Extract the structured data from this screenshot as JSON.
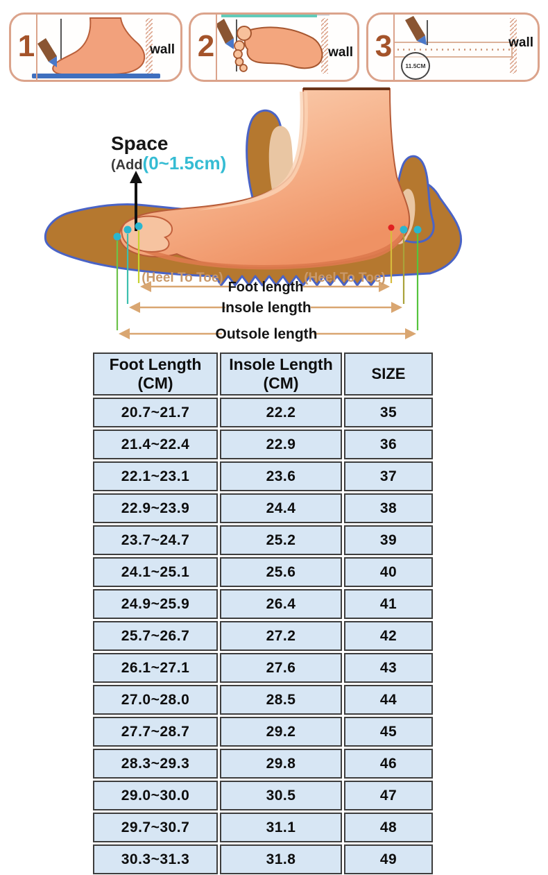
{
  "measuring_steps": {
    "panels": [
      {
        "number": "1",
        "wall_label": "wall"
      },
      {
        "number": "2",
        "wall_label": "wall"
      },
      {
        "number": "3",
        "wall_label": "wall",
        "circle_label": "11.5CM"
      }
    ]
  },
  "foot_diagram": {
    "space_title": "Space",
    "space_prefix": "(Add",
    "space_range": "(0~1.5cm)",
    "heel_to_toe_left": "(Heel To Toe)",
    "heel_to_toe_right": "(Heel To Toe)",
    "foot_length_label": "Foot length",
    "insole_length_label": "Insole length",
    "outsole_length_label": "Outsole length"
  },
  "size_table": {
    "headers": [
      {
        "line1": "Foot Length",
        "line2": "(CM)"
      },
      {
        "line1": "Insole Length",
        "line2": "(CM)"
      },
      {
        "line1": "SIZE",
        "line2": ""
      }
    ],
    "rows": [
      {
        "foot_length": "20.7~21.7",
        "insole_length": "22.2",
        "size": "35"
      },
      {
        "foot_length": "21.4~22.4",
        "insole_length": "22.9",
        "size": "36"
      },
      {
        "foot_length": "22.1~23.1",
        "insole_length": "23.6",
        "size": "37"
      },
      {
        "foot_length": "22.9~23.9",
        "insole_length": "24.4",
        "size": "38"
      },
      {
        "foot_length": "23.7~24.7",
        "insole_length": "25.2",
        "size": "39"
      },
      {
        "foot_length": "24.1~25.1",
        "insole_length": "25.6",
        "size": "40"
      },
      {
        "foot_length": "24.9~25.9",
        "insole_length": "26.4",
        "size": "41"
      },
      {
        "foot_length": "25.7~26.7",
        "insole_length": "27.2",
        "size": "42"
      },
      {
        "foot_length": "26.1~27.1",
        "insole_length": "27.6",
        "size": "43"
      },
      {
        "foot_length": "27.0~28.0",
        "insole_length": "28.5",
        "size": "44"
      },
      {
        "foot_length": "27.7~28.7",
        "insole_length": "29.2",
        "size": "45"
      },
      {
        "foot_length": "28.3~29.3",
        "insole_length": "29.8",
        "size": "46"
      },
      {
        "foot_length": "29.0~30.0",
        "insole_length": "30.5",
        "size": "47"
      },
      {
        "foot_length": "29.7~30.7",
        "insole_length": "31.1",
        "size": "48"
      },
      {
        "foot_length": "30.3~31.3",
        "insole_length": "31.8",
        "size": "49"
      }
    ]
  },
  "chart_data": {
    "type": "table",
    "columns": [
      "Foot Length (CM)",
      "Insole Length (CM)",
      "SIZE"
    ],
    "rows": [
      [
        "20.7~21.7",
        "22.2",
        "35"
      ],
      [
        "21.4~22.4",
        "22.9",
        "36"
      ],
      [
        "22.1~23.1",
        "23.6",
        "37"
      ],
      [
        "22.9~23.9",
        "24.4",
        "38"
      ],
      [
        "23.7~24.7",
        "25.2",
        "39"
      ],
      [
        "24.1~25.1",
        "25.6",
        "40"
      ],
      [
        "24.9~25.9",
        "26.4",
        "41"
      ],
      [
        "25.7~26.7",
        "27.2",
        "42"
      ],
      [
        "26.1~27.1",
        "27.6",
        "43"
      ],
      [
        "27.0~28.0",
        "28.5",
        "44"
      ],
      [
        "27.7~28.7",
        "29.2",
        "45"
      ],
      [
        "28.3~29.3",
        "29.8",
        "46"
      ],
      [
        "29.0~30.0",
        "30.5",
        "47"
      ],
      [
        "29.7~30.7",
        "31.1",
        "48"
      ],
      [
        "30.3~31.3",
        "31.8",
        "49"
      ]
    ]
  },
  "colors": {
    "panel_border": "#dba38b",
    "step_number": "#a4532a",
    "foot_skin": "#f4a77e",
    "sole_brown": "#b5782f",
    "sole_outline_blue": "#4a63c5",
    "cyan_accent": "#35bcd3",
    "tan_arrow": "#d9a671",
    "heel_to_toe_text": "#c9996a",
    "table_cell_bg": "#d7e6f4",
    "table_border": "#3d3d3d"
  }
}
